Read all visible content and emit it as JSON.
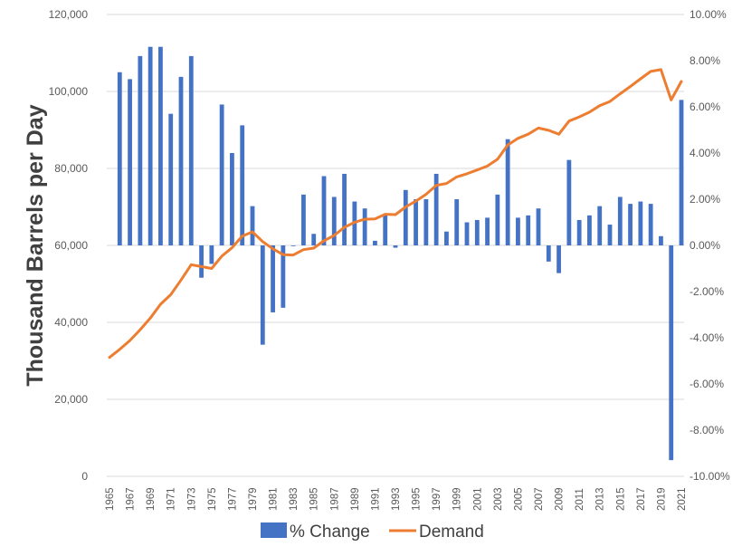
{
  "chart_data": {
    "type": "bar+line",
    "title": "",
    "ylabel": "Thousand Barrels per Day",
    "xlabel": "",
    "x": [
      1965,
      1966,
      1967,
      1968,
      1969,
      1970,
      1971,
      1972,
      1973,
      1974,
      1975,
      1976,
      1977,
      1978,
      1979,
      1980,
      1981,
      1982,
      1983,
      1984,
      1985,
      1986,
      1987,
      1988,
      1989,
      1990,
      1991,
      1992,
      1993,
      1994,
      1995,
      1996,
      1997,
      1998,
      1999,
      2000,
      2001,
      2002,
      2003,
      2004,
      2005,
      2006,
      2007,
      2008,
      2009,
      2010,
      2011,
      2012,
      2013,
      2014,
      2015,
      2016,
      2017,
      2018,
      2019,
      2020,
      2021
    ],
    "x_tick_labels": [
      "1965",
      "1967",
      "1969",
      "1971",
      "1973",
      "1975",
      "1977",
      "1979",
      "1981",
      "1983",
      "1985",
      "1987",
      "1989",
      "1991",
      "1993",
      "1995",
      "1997",
      "1999",
      "2001",
      "2003",
      "2005",
      "2007",
      "2009",
      "2011",
      "2013",
      "2015",
      "2017",
      "2019",
      "2021"
    ],
    "y_left": {
      "ylim": [
        0,
        120000
      ],
      "ticks": [
        "0",
        "20,000",
        "40,000",
        "60,000",
        "80,000",
        "100,000",
        "120,000"
      ],
      "tick_values": [
        0,
        20000,
        40000,
        60000,
        80000,
        100000,
        120000
      ]
    },
    "y_right": {
      "ylim": [
        -10,
        10
      ],
      "ticks": [
        "-10.00%",
        "-8.00%",
        "-6.00%",
        "-4.00%",
        "-2.00%",
        "0.00%",
        "2.00%",
        "4.00%",
        "6.00%",
        "8.00%",
        "10.00%"
      ],
      "tick_values": [
        -10,
        -8,
        -6,
        -4,
        -2,
        0,
        2,
        4,
        6,
        8,
        10
      ]
    },
    "grid": true,
    "legend_position": "bottom",
    "series": [
      {
        "name": "% Change",
        "type": "bar",
        "axis": "right",
        "color": "#4472C4",
        "values": [
          null,
          7.5,
          7.2,
          8.2,
          8.6,
          8.6,
          5.7,
          7.3,
          8.2,
          -1.4,
          -0.8,
          6.1,
          4.0,
          5.2,
          1.7,
          -4.3,
          -2.9,
          -2.7,
          0.0,
          2.2,
          0.5,
          3.0,
          2.1,
          3.1,
          1.9,
          1.6,
          0.2,
          1.3,
          -0.1,
          2.4,
          2.0,
          2.0,
          3.1,
          0.6,
          2.0,
          1.0,
          1.1,
          1.2,
          2.2,
          4.6,
          1.2,
          1.3,
          1.6,
          -0.7,
          -1.2,
          3.7,
          1.1,
          1.3,
          1.7,
          0.9,
          2.1,
          1.8,
          1.9,
          1.8,
          0.4,
          -9.3,
          6.3
        ]
      },
      {
        "name": "Demand",
        "type": "line",
        "axis": "left",
        "color": "#ED7D31",
        "values": [
          30900,
          33000,
          35300,
          38100,
          41100,
          44700,
          47200,
          51000,
          55000,
          54500,
          54000,
          57200,
          59400,
          62400,
          63500,
          61000,
          59100,
          57600,
          57500,
          58900,
          59300,
          61200,
          62600,
          64700,
          66000,
          66800,
          66900,
          68100,
          68000,
          70000,
          71500,
          73300,
          75600,
          76100,
          77800,
          78600,
          79600,
          80600,
          82400,
          86100,
          87800,
          88900,
          90500,
          89900,
          88900,
          92300,
          93400,
          94600,
          96300,
          97400,
          99400,
          101300,
          103300,
          105200,
          105700,
          97800,
          102600
        ]
      }
    ]
  }
}
